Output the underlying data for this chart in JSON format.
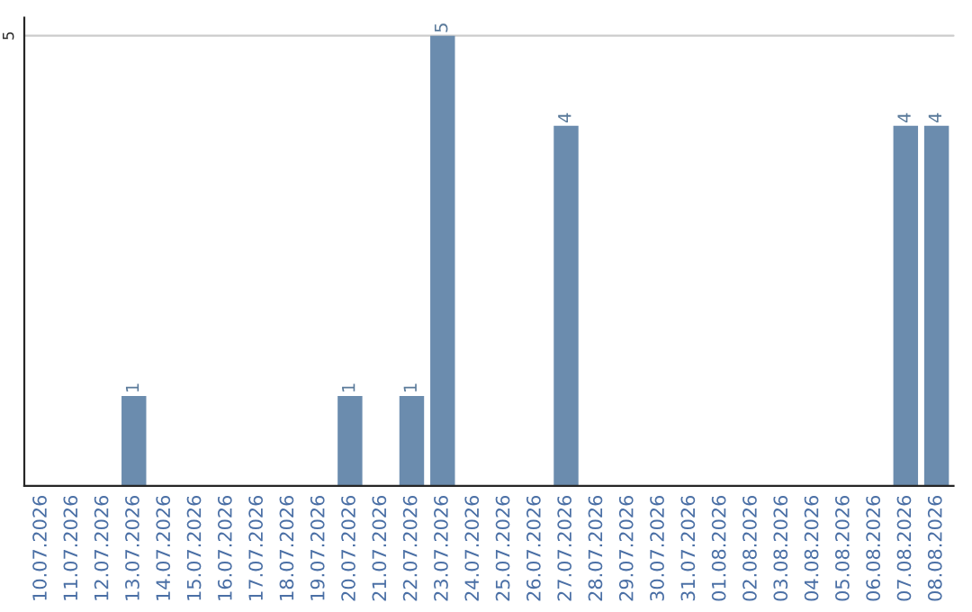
{
  "chart_data": {
    "type": "bar",
    "categories": [
      "10.07.2026",
      "11.07.2026",
      "12.07.2026",
      "13.07.2026",
      "14.07.2026",
      "15.07.2026",
      "16.07.2026",
      "17.07.2026",
      "18.07.2026",
      "19.07.2026",
      "20.07.2026",
      "21.07.2026",
      "22.07.2026",
      "23.07.2026",
      "24.07.2026",
      "25.07.2026",
      "26.07.2026",
      "27.07.2026",
      "28.07.2026",
      "29.07.2026",
      "30.07.2026",
      "31.07.2026",
      "01.08.2026",
      "02.08.2026",
      "03.08.2026",
      "04.08.2026",
      "05.08.2026",
      "06.08.2026",
      "07.08.2026",
      "08.08.2026"
    ],
    "values": [
      0,
      0,
      0,
      1,
      0,
      0,
      0,
      0,
      0,
      0,
      1,
      0,
      1,
      5,
      0,
      0,
      0,
      4,
      0,
      0,
      0,
      0,
      0,
      0,
      0,
      0,
      0,
      0,
      4,
      4
    ],
    "value_labels": [
      null,
      null,
      null,
      "1",
      null,
      null,
      null,
      null,
      null,
      null,
      "1",
      null,
      "1",
      "5",
      null,
      null,
      null,
      "4",
      null,
      null,
      null,
      null,
      null,
      null,
      null,
      null,
      null,
      null,
      "4",
      "4"
    ],
    "color": "#6b8cae",
    "ylim": [
      0,
      5.2
    ],
    "yticks": [
      5
    ],
    "grid": "y"
  }
}
